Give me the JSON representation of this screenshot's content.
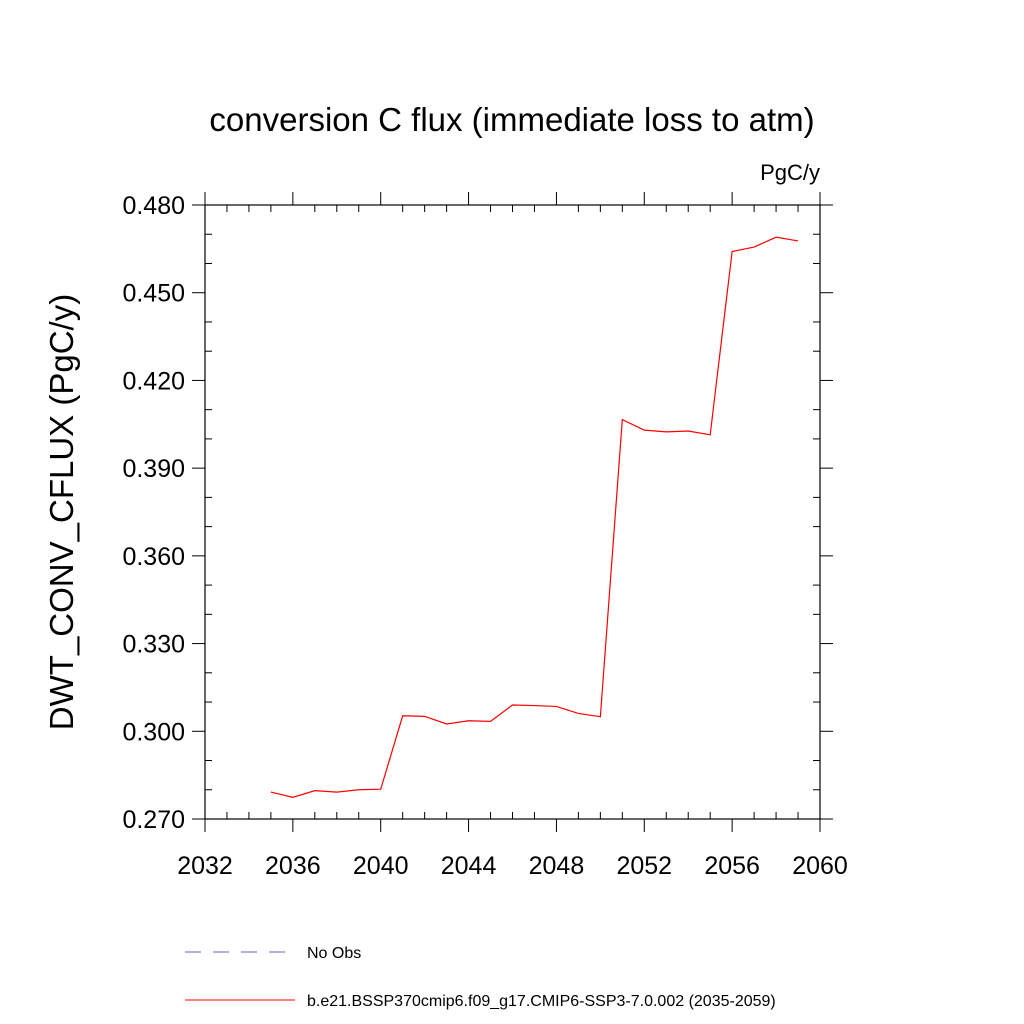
{
  "chart_data": {
    "type": "line",
    "title": "conversion C flux (immediate loss to atm)",
    "units": "PgC/y",
    "ylabel": "DWT_CONV_CFLUX  (PgC/y)",
    "xlabel": "",
    "xlim": [
      2032,
      2060
    ],
    "ylim": [
      0.27,
      0.48
    ],
    "x_ticks": [
      "2032",
      "2036",
      "2040",
      "2044",
      "2048",
      "2052",
      "2056",
      "2060"
    ],
    "y_ticks": [
      "0.270",
      "0.300",
      "0.330",
      "0.360",
      "0.390",
      "0.420",
      "0.450",
      "0.480"
    ],
    "grid": false,
    "legend_placement": "bottom",
    "series": [
      {
        "name": "b.e21.BSSP370cmip6.f09_g17.CMIP6-SSP3-7.0.002 (2035-2059)",
        "color": "#ff0000",
        "style": "solid",
        "x": [
          2035,
          2036,
          2037,
          2038,
          2039,
          2040,
          2041,
          2042,
          2043,
          2044,
          2045,
          2046,
          2047,
          2048,
          2049,
          2050,
          2051,
          2052,
          2053,
          2054,
          2055,
          2056,
          2057,
          2058,
          2059
        ],
        "values": [
          0.2792,
          0.2774,
          0.2797,
          0.2792,
          0.28,
          0.2802,
          0.3053,
          0.3051,
          0.3025,
          0.3036,
          0.3034,
          0.309,
          0.3088,
          0.3085,
          0.3061,
          0.305,
          0.4066,
          0.403,
          0.4024,
          0.4027,
          0.4014,
          0.4641,
          0.4656,
          0.469,
          0.4677
        ]
      },
      {
        "name": "No Obs",
        "color": "#6060cc",
        "style": "dashed",
        "x": [],
        "values": []
      }
    ]
  }
}
